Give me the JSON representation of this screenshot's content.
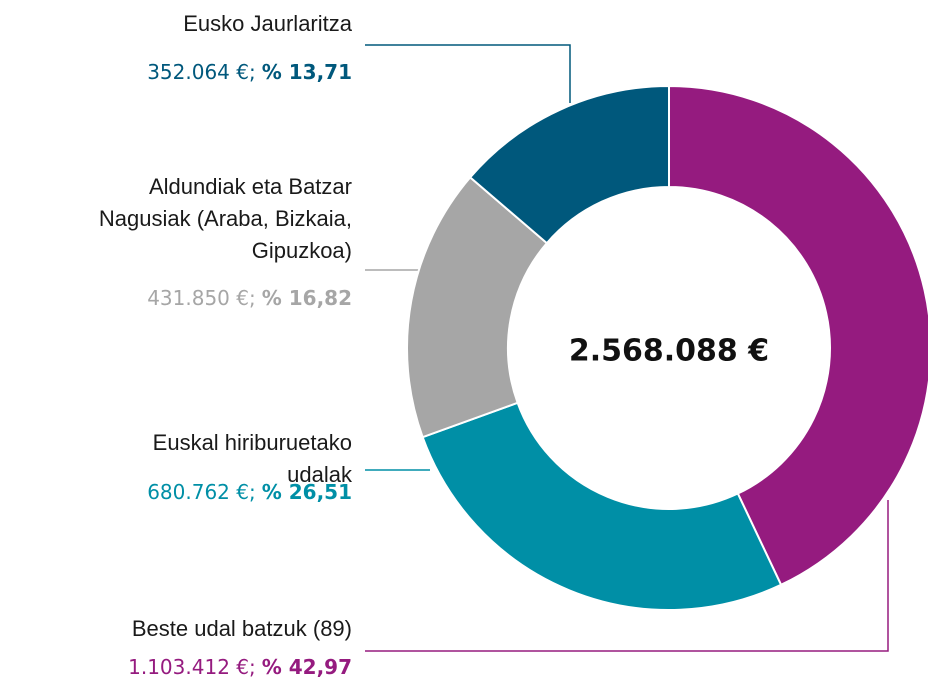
{
  "chart_data": {
    "type": "pie",
    "donut": true,
    "categories": [
      "Eusko Jaurlaritza",
      "Aldundiak eta Batzar Nagusiak (Araba, Bizkaia, Gipuzkoa)",
      "Euskal hiriburuetako udalak",
      "Beste udal batzuk (89)"
    ],
    "values": [
      352064,
      431850,
      680762,
      1103412
    ],
    "value_labels": [
      "352.064 €;",
      "431.850 €;",
      "680.762 €;",
      "1.103.412 €;"
    ],
    "percents": [
      13.71,
      16.82,
      26.51,
      42.97
    ],
    "percent_labels": [
      "% 13,71",
      "% 16,82",
      "% 26,51",
      "% 42,97"
    ],
    "colors": [
      "#00587c",
      "#a6a6a6",
      "#008fa6",
      "#951b7f"
    ],
    "total": {
      "value": 2568088,
      "label": "2.568.088 €"
    }
  }
}
